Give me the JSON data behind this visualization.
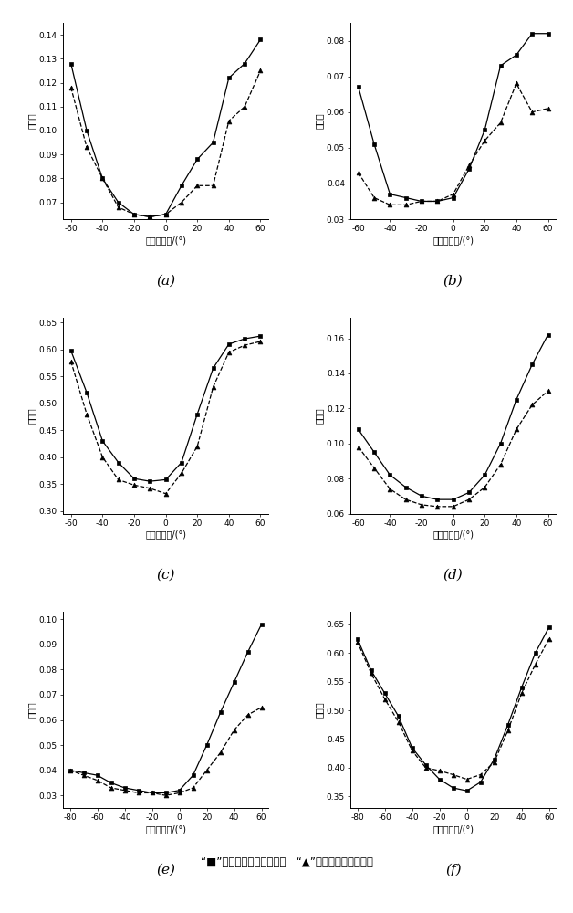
{
  "plots": [
    {
      "label": "(a)",
      "x": [
        -60,
        -50,
        -40,
        -30,
        -20,
        -10,
        0,
        10,
        20,
        30,
        40,
        50,
        60
      ],
      "square": [
        0.128,
        0.1,
        0.08,
        0.07,
        0.065,
        0.064,
        0.065,
        0.077,
        0.088,
        0.095,
        0.122,
        0.128,
        0.138
      ],
      "triangle": [
        0.118,
        0.093,
        0.08,
        0.068,
        0.065,
        0.064,
        0.065,
        0.07,
        0.077,
        0.077,
        0.104,
        0.11,
        0.125
      ],
      "ylim": [
        0.063,
        0.145
      ],
      "yticks": [
        0.07,
        0.08,
        0.09,
        0.1,
        0.11,
        0.12,
        0.13,
        0.14
      ],
      "xlim": [
        -65,
        65
      ],
      "xticks": [
        -60,
        -40,
        -20,
        0,
        20,
        40,
        60
      ]
    },
    {
      "label": "(b)",
      "x": [
        -60,
        -50,
        -40,
        -30,
        -20,
        -10,
        0,
        10,
        20,
        30,
        40,
        50,
        60
      ],
      "square": [
        0.067,
        0.051,
        0.037,
        0.036,
        0.035,
        0.035,
        0.036,
        0.044,
        0.055,
        0.073,
        0.076,
        0.082,
        0.082
      ],
      "triangle": [
        0.043,
        0.036,
        0.034,
        0.034,
        0.035,
        0.035,
        0.037,
        0.045,
        0.052,
        0.057,
        0.068,
        0.06,
        0.061
      ],
      "ylim": [
        0.03,
        0.085
      ],
      "yticks": [
        0.03,
        0.04,
        0.05,
        0.06,
        0.07,
        0.08
      ],
      "xlim": [
        -65,
        65
      ],
      "xticks": [
        -60,
        -40,
        -20,
        0,
        20,
        40,
        60
      ]
    },
    {
      "label": "(c)",
      "x": [
        -60,
        -50,
        -40,
        -30,
        -20,
        -10,
        0,
        10,
        20,
        30,
        40,
        50,
        60
      ],
      "square": [
        0.598,
        0.52,
        0.43,
        0.39,
        0.36,
        0.355,
        0.358,
        0.39,
        0.48,
        0.565,
        0.61,
        0.62,
        0.625
      ],
      "triangle": [
        0.578,
        0.48,
        0.4,
        0.358,
        0.348,
        0.342,
        0.332,
        0.37,
        0.42,
        0.53,
        0.595,
        0.608,
        0.615
      ],
      "ylim": [
        0.295,
        0.66
      ],
      "yticks": [
        0.3,
        0.35,
        0.4,
        0.45,
        0.5,
        0.55,
        0.6,
        0.65
      ],
      "xlim": [
        -65,
        65
      ],
      "xticks": [
        -60,
        -40,
        -20,
        0,
        20,
        40,
        60
      ]
    },
    {
      "label": "(d)",
      "x": [
        -60,
        -50,
        -40,
        -30,
        -20,
        -10,
        0,
        10,
        20,
        30,
        40,
        50,
        60
      ],
      "square": [
        0.108,
        0.095,
        0.082,
        0.075,
        0.07,
        0.068,
        0.068,
        0.072,
        0.082,
        0.1,
        0.125,
        0.145,
        0.162
      ],
      "triangle": [
        0.098,
        0.086,
        0.074,
        0.068,
        0.065,
        0.064,
        0.064,
        0.068,
        0.075,
        0.088,
        0.108,
        0.122,
        0.13
      ],
      "ylim": [
        0.062,
        0.172
      ],
      "yticks": [
        0.06,
        0.08,
        0.1,
        0.12,
        0.14,
        0.16
      ],
      "xlim": [
        -65,
        65
      ],
      "xticks": [
        -60,
        -40,
        -20,
        0,
        20,
        40,
        60
      ]
    },
    {
      "label": "(e)",
      "x": [
        -80,
        -70,
        -60,
        -50,
        -40,
        -30,
        -20,
        -10,
        0,
        10,
        20,
        30,
        40,
        50,
        60
      ],
      "square": [
        0.04,
        0.039,
        0.038,
        0.035,
        0.033,
        0.032,
        0.031,
        0.031,
        0.032,
        0.038,
        0.05,
        0.063,
        0.075,
        0.087,
        0.098
      ],
      "triangle": [
        0.04,
        0.038,
        0.036,
        0.033,
        0.032,
        0.031,
        0.031,
        0.03,
        0.031,
        0.033,
        0.04,
        0.047,
        0.056,
        0.062,
        0.065
      ],
      "ylim": [
        0.025,
        0.103
      ],
      "yticks": [
        0.03,
        0.04,
        0.05,
        0.06,
        0.07,
        0.08,
        0.09,
        0.1
      ],
      "xlim": [
        -85,
        65
      ],
      "xticks": [
        -80,
        -60,
        -40,
        -20,
        0,
        20,
        40,
        60
      ]
    },
    {
      "label": "(f)",
      "x": [
        -80,
        -70,
        -60,
        -50,
        -40,
        -30,
        -20,
        -10,
        0,
        10,
        20,
        30,
        40,
        50,
        60
      ],
      "square": [
        0.625,
        0.57,
        0.53,
        0.49,
        0.435,
        0.405,
        0.38,
        0.365,
        0.36,
        0.375,
        0.415,
        0.475,
        0.54,
        0.6,
        0.645
      ],
      "triangle": [
        0.62,
        0.565,
        0.52,
        0.48,
        0.43,
        0.4,
        0.395,
        0.388,
        0.38,
        0.388,
        0.41,
        0.465,
        0.53,
        0.58,
        0.625
      ],
      "ylim": [
        0.33,
        0.672
      ],
      "yticks": [
        0.35,
        0.4,
        0.45,
        0.5,
        0.55,
        0.6,
        0.65
      ],
      "xlim": [
        -85,
        65
      ],
      "xticks": [
        -80,
        -60,
        -40,
        -20,
        0,
        20,
        40,
        60
      ]
    }
  ],
  "xlabel": "观测天顶角/(°)",
  "ylabel": "反射率",
  "footnote": "“■”代表为野外观测数据，   “▲”代表模型模拟数据。"
}
